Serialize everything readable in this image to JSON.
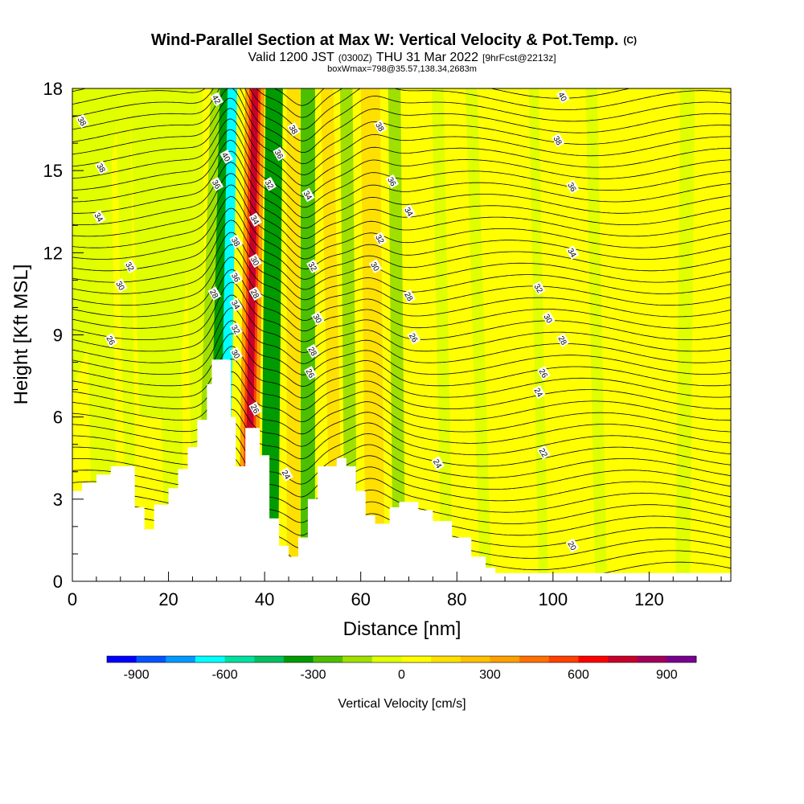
{
  "chart_data": {
    "type": "heatmap",
    "title": "Wind-Parallel Section at Max W: Vertical Velocity & Pot.Temp.",
    "title_mark": "(C)",
    "subtitle_main": "Valid 1200 JST",
    "subtitle_utc": "(0300Z)",
    "subtitle_date": "THU 31 Mar 2022",
    "subtitle_fcst": "[9hrFcst@2213z]",
    "subtitle2": "boxWmax=798@35.57,138.34,2683m",
    "xlabel": "Distance [nm]",
    "ylabel": "Height [Kft MSL]",
    "xlim": [
      0,
      137
    ],
    "ylim": [
      0,
      18
    ],
    "x_ticks": [
      "0",
      "20",
      "40",
      "60",
      "80",
      "100",
      "120"
    ],
    "x_tick_values": [
      0,
      20,
      40,
      60,
      80,
      100,
      120
    ],
    "y_ticks": [
      "0",
      "3",
      "6",
      "9",
      "12",
      "15",
      "18"
    ],
    "y_tick_values": [
      0,
      3,
      6,
      9,
      12,
      15,
      18
    ],
    "colorbar": {
      "label": "Vertical Velocity [cm/s]",
      "ticks": [
        "-900",
        "-600",
        "-300",
        "0",
        "300",
        "600",
        "900"
      ],
      "tick_values": [
        -900,
        -600,
        -300,
        0,
        300,
        600,
        900
      ],
      "range": [
        -1000,
        1000
      ],
      "colors": [
        "#0000ff",
        "#0055ff",
        "#0099ff",
        "#00ffff",
        "#00e0a0",
        "#00c060",
        "#009b00",
        "#4cc000",
        "#a0e000",
        "#e0ff00",
        "#ffff00",
        "#ffe000",
        "#ffc000",
        "#ffa000",
        "#ff7000",
        "#ff4000",
        "#ff0000",
        "#c8002a",
        "#a00058",
        "#780090"
      ]
    },
    "terrain_height_kft": [
      [
        0,
        3.3
      ],
      [
        2,
        3.3
      ],
      [
        2,
        3.6
      ],
      [
        5,
        3.6
      ],
      [
        5,
        3.9
      ],
      [
        8,
        3.9
      ],
      [
        8,
        4.2
      ],
      [
        13,
        4.2
      ],
      [
        13,
        2.7
      ],
      [
        15,
        2.7
      ],
      [
        15,
        1.9
      ],
      [
        17,
        1.9
      ],
      [
        17,
        2.8
      ],
      [
        20,
        2.8
      ],
      [
        20,
        3.4
      ],
      [
        22,
        3.4
      ],
      [
        22,
        4.1
      ],
      [
        24,
        4.1
      ],
      [
        24,
        4.9
      ],
      [
        26,
        4.9
      ],
      [
        26,
        5.9
      ],
      [
        28,
        5.9
      ],
      [
        28,
        7.2
      ],
      [
        29,
        7.2
      ],
      [
        29,
        8.1
      ],
      [
        33,
        8.1
      ],
      [
        33,
        6.0
      ],
      [
        34,
        6.0
      ],
      [
        34,
        4.2
      ],
      [
        36,
        4.2
      ],
      [
        36,
        5.6
      ],
      [
        39,
        5.6
      ],
      [
        39,
        4.6
      ],
      [
        41,
        4.6
      ],
      [
        41,
        2.3
      ],
      [
        43,
        2.3
      ],
      [
        43,
        1.3
      ],
      [
        45,
        1.3
      ],
      [
        45,
        0.9
      ],
      [
        47,
        0.9
      ],
      [
        47,
        1.6
      ],
      [
        49,
        1.6
      ],
      [
        49,
        3.0
      ],
      [
        51,
        3.0
      ],
      [
        51,
        4.2
      ],
      [
        55,
        4.2
      ],
      [
        55,
        4.5
      ],
      [
        57,
        4.5
      ],
      [
        57,
        4.2
      ],
      [
        59,
        4.2
      ],
      [
        59,
        3.3
      ],
      [
        61,
        3.3
      ],
      [
        61,
        2.4
      ],
      [
        63,
        2.4
      ],
      [
        63,
        2.1
      ],
      [
        66,
        2.1
      ],
      [
        66,
        2.7
      ],
      [
        68,
        2.7
      ],
      [
        68,
        2.9
      ],
      [
        72,
        2.9
      ],
      [
        72,
        2.6
      ],
      [
        75,
        2.6
      ],
      [
        75,
        2.2
      ],
      [
        79,
        2.2
      ],
      [
        79,
        1.6
      ],
      [
        83,
        1.6
      ],
      [
        83,
        0.9
      ],
      [
        86,
        0.9
      ],
      [
        86,
        0.5
      ],
      [
        88,
        0.5
      ],
      [
        88,
        0.3
      ],
      [
        137,
        0.3
      ]
    ],
    "vertical_velocity_bands": [
      {
        "x_top": 31,
        "x_bottom": 28,
        "half_width_nm": 2.2,
        "w_cm_s": -150
      },
      {
        "x_top": 32,
        "x_bottom": 29.5,
        "half_width_nm": 1.3,
        "w_cm_s": -400
      },
      {
        "x_top": 33.3,
        "x_bottom": 31.5,
        "half_width_nm": 1.0,
        "w_cm_s": -620
      },
      {
        "x_top": 38,
        "x_bottom": 36.5,
        "half_width_nm": 2.0,
        "w_cm_s": 300
      },
      {
        "x_top": 38,
        "x_bottom": 36.5,
        "half_width_nm": 1.2,
        "w_cm_s": 550
      },
      {
        "x_top": 38,
        "x_bottom": 36.5,
        "half_width_nm": 0.7,
        "w_cm_s": 798
      },
      {
        "x_top": 42,
        "x_bottom": 41,
        "half_width_nm": 1.8,
        "w_cm_s": -350
      },
      {
        "x_top": 46,
        "x_bottom": 46,
        "half_width_nm": 1.4,
        "w_cm_s": 120
      },
      {
        "x_top": 49,
        "x_bottom": 49,
        "half_width_nm": 1.5,
        "w_cm_s": -250
      },
      {
        "x_top": 53,
        "x_bottom": 55,
        "half_width_nm": 1.3,
        "w_cm_s": 150
      },
      {
        "x_top": 57,
        "x_bottom": 58,
        "half_width_nm": 1.3,
        "w_cm_s": -120
      },
      {
        "x_top": 62,
        "x_bottom": 63,
        "half_width_nm": 2.0,
        "w_cm_s": 180
      },
      {
        "x_top": 67,
        "x_bottom": 68,
        "half_width_nm": 1.3,
        "w_cm_s": -200
      },
      {
        "x_top": 76,
        "x_bottom": 78,
        "half_width_nm": 1.2,
        "w_cm_s": -60
      },
      {
        "x_top": 83,
        "x_bottom": 86,
        "half_width_nm": 1.2,
        "w_cm_s": -60
      },
      {
        "x_top": 96,
        "x_bottom": 98,
        "half_width_nm": 1.0,
        "w_cm_s": -60
      },
      {
        "x_top": 108,
        "x_bottom": 110,
        "half_width_nm": 1.2,
        "w_cm_s": -60
      },
      {
        "x_top": 128,
        "x_bottom": 127,
        "half_width_nm": 1.5,
        "w_cm_s": -60
      }
    ],
    "theta_contour_labels": [
      {
        "label": "42",
        "x": 30,
        "y": 17.6
      },
      {
        "label": "40",
        "x": 32,
        "y": 15.5
      },
      {
        "label": "38",
        "x": 2,
        "y": 16.8
      },
      {
        "label": "38",
        "x": 6,
        "y": 15.1
      },
      {
        "label": "36",
        "x": 30,
        "y": 14.5
      },
      {
        "label": "34",
        "x": 5.5,
        "y": 13.3
      },
      {
        "label": "32",
        "x": 12,
        "y": 11.5
      },
      {
        "label": "30",
        "x": 10,
        "y": 10.8
      },
      {
        "label": "26",
        "x": 8,
        "y": 8.8
      },
      {
        "label": "38",
        "x": 34,
        "y": 12.4
      },
      {
        "label": "36",
        "x": 34,
        "y": 11.1
      },
      {
        "label": "34",
        "x": 34,
        "y": 10.1
      },
      {
        "label": "32",
        "x": 34,
        "y": 9.2
      },
      {
        "label": "30",
        "x": 34,
        "y": 8.3
      },
      {
        "label": "28",
        "x": 29.5,
        "y": 10.5
      },
      {
        "label": "34",
        "x": 38,
        "y": 13.2
      },
      {
        "label": "32",
        "x": 41,
        "y": 14.5
      },
      {
        "label": "36",
        "x": 43,
        "y": 15.6
      },
      {
        "label": "38",
        "x": 46,
        "y": 16.5
      },
      {
        "label": "30",
        "x": 38,
        "y": 11.7
      },
      {
        "label": "28",
        "x": 38,
        "y": 10.5
      },
      {
        "label": "26",
        "x": 38,
        "y": 6.3
      },
      {
        "label": "34",
        "x": 49,
        "y": 14.1
      },
      {
        "label": "32",
        "x": 50,
        "y": 11.5
      },
      {
        "label": "30",
        "x": 51,
        "y": 9.6
      },
      {
        "label": "28",
        "x": 50,
        "y": 8.4
      },
      {
        "label": "26",
        "x": 49.5,
        "y": 7.6
      },
      {
        "label": "24",
        "x": 44.5,
        "y": 3.9
      },
      {
        "label": "38",
        "x": 64,
        "y": 16.6
      },
      {
        "label": "36",
        "x": 66.5,
        "y": 14.6
      },
      {
        "label": "34",
        "x": 70,
        "y": 13.5
      },
      {
        "label": "32",
        "x": 64,
        "y": 12.5
      },
      {
        "label": "30",
        "x": 63,
        "y": 11.5
      },
      {
        "label": "28",
        "x": 70,
        "y": 10.4
      },
      {
        "label": "26",
        "x": 71,
        "y": 8.9
      },
      {
        "label": "24",
        "x": 76,
        "y": 4.3
      },
      {
        "label": "40",
        "x": 102,
        "y": 17.7
      },
      {
        "label": "38",
        "x": 101,
        "y": 16.1
      },
      {
        "label": "36",
        "x": 104,
        "y": 14.4
      },
      {
        "label": "34",
        "x": 104,
        "y": 12.0
      },
      {
        "label": "32",
        "x": 97,
        "y": 10.7
      },
      {
        "label": "30",
        "x": 99,
        "y": 9.6
      },
      {
        "label": "28",
        "x": 102,
        "y": 8.8
      },
      {
        "label": "26",
        "x": 98,
        "y": 7.6
      },
      {
        "label": "24",
        "x": 97,
        "y": 6.9
      },
      {
        "label": "22",
        "x": 98,
        "y": 4.7
      },
      {
        "label": "20",
        "x": 104,
        "y": 1.3
      }
    ]
  }
}
